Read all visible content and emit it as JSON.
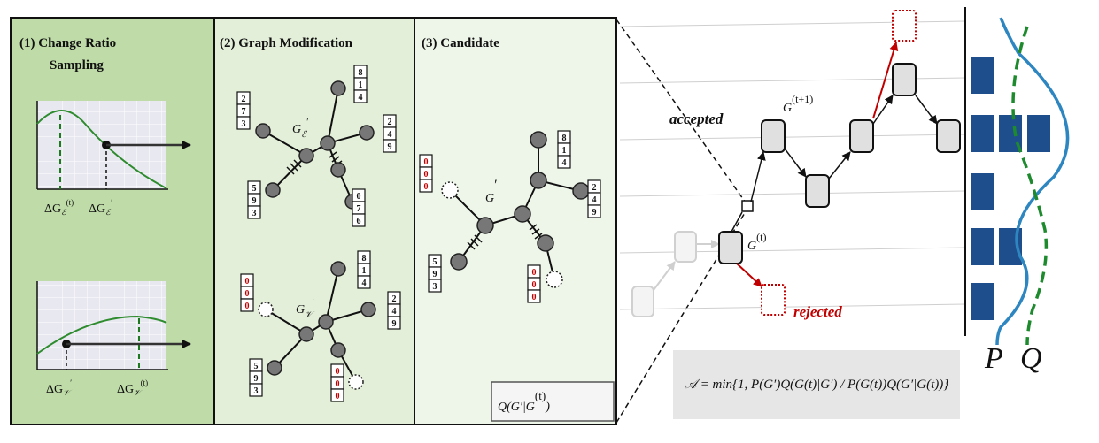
{
  "panels": {
    "p1": {
      "title_line1": "(1)  Change Ratio",
      "title_line2": "Sampling",
      "top_plot": {
        "x_label_1": "ΔG",
        "x_label_1_sub": "ℰ",
        "x_label_1_sup": "(t)",
        "x_label_2": "ΔG",
        "x_label_2_sub": "ℰ",
        "x_label_2_sup": "′"
      },
      "bottom_plot": {
        "x_label_1": "ΔG",
        "x_label_1_sub": "𝒱",
        "x_label_1_sup": "′",
        "x_label_2": "ΔG",
        "x_label_2_sub": "𝒱",
        "x_label_2_sup": "(t)"
      }
    },
    "p2": {
      "title": "(2) Graph Modification",
      "top_graph_label": "G",
      "top_graph_sub": "ℰ",
      "top_graph_sup": "′",
      "bottom_graph_label": "G",
      "bottom_graph_sub": "𝒱",
      "bottom_graph_sup": "′"
    },
    "p3": {
      "title": "(3) Candidate",
      "graph_label": "G",
      "graph_sup": "′",
      "proposal": "Q(G′|G",
      "proposal_sup": "(t)",
      "proposal_end": ")"
    }
  },
  "feature_vectors": {
    "a": [
      "8",
      "1",
      "4"
    ],
    "b": [
      "2",
      "7",
      "3"
    ],
    "c": [
      "2",
      "4",
      "9"
    ],
    "d": [
      "5",
      "9",
      "3"
    ],
    "e": [
      "0",
      "7",
      "6"
    ],
    "f": [
      "8",
      "1",
      "4"
    ],
    "g": [
      "0",
      "0",
      "0"
    ],
    "h": [
      "2",
      "4",
      "9"
    ],
    "i": [
      "5",
      "9",
      "3"
    ],
    "j": [
      "0",
      "0",
      "0"
    ],
    "k": [
      "8",
      "1",
      "4"
    ],
    "l": [
      "0",
      "0",
      "0"
    ],
    "m": [
      "2",
      "4",
      "9"
    ],
    "n": [
      "5",
      "9",
      "3"
    ],
    "o": [
      "0",
      "0",
      "0"
    ]
  },
  "chain": {
    "accepted": "accepted",
    "rejected": "rejected",
    "next_state": "G",
    "next_state_sup": "(t+1)",
    "current_state": "G",
    "current_state_sup": "(t)",
    "formula": "𝒜 = min{1, P(G′)Q(G(t)|G′) / P(G(t))Q(G′|G(t))}",
    "colors": {
      "accent_red": "#c00000",
      "node_fill": "#e0e0e0"
    }
  },
  "distributions": {
    "p_label": "P",
    "q_label": "Q",
    "p_color": "#2e86c1",
    "q_color": "#1e8a2e",
    "bar_color": "#1f4e8c",
    "bar_counts": [
      1,
      3,
      1,
      2,
      1
    ]
  }
}
